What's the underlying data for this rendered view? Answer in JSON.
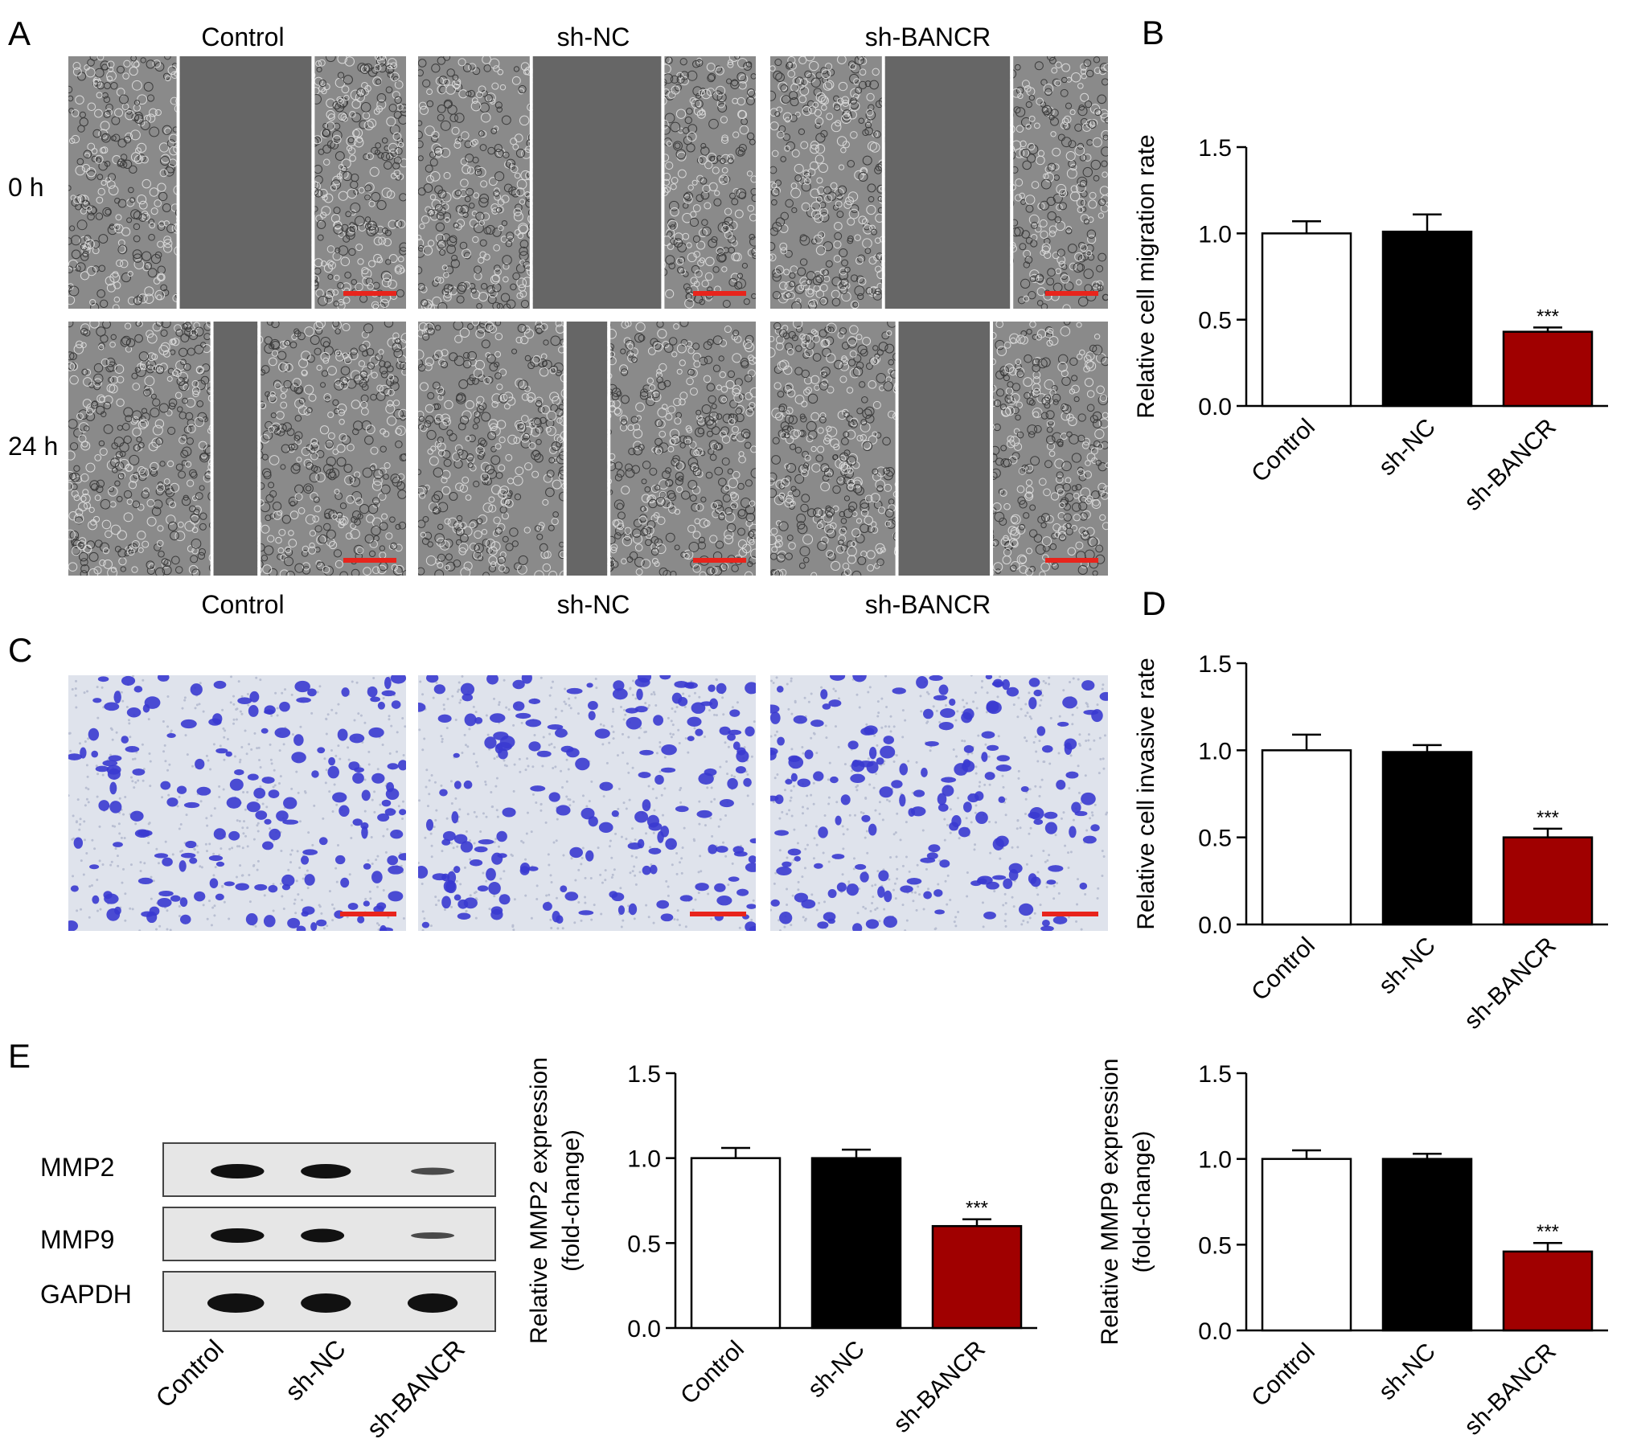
{
  "colors": {
    "control_fill": "#ffffff",
    "shnc_fill": "#000000",
    "shbancr_fill": "#a00000",
    "scale_bar": "#e8241c",
    "stain": "#3a3ad0",
    "phase_bg": "#6e6e6e"
  },
  "panelA": {
    "letter": "A",
    "columns": [
      "Control",
      "sh-NC",
      "sh-BANCR"
    ],
    "rows": [
      "0 h",
      "24 h"
    ]
  },
  "panelC": {
    "letter": "C",
    "columns": [
      "Control",
      "sh-NC",
      "sh-BANCR"
    ]
  },
  "panelE": {
    "letter": "E",
    "blot_rows": [
      "MMP2",
      "MMP9",
      "GAPDH"
    ],
    "lanes": [
      "Control",
      "sh-NC",
      "sh-BANCR"
    ]
  },
  "chart_data": [
    {
      "id": "B",
      "letter": "B",
      "type": "bar",
      "categories": [
        "Control",
        "sh-NC",
        "sh-BANCR"
      ],
      "values": [
        1.0,
        1.01,
        0.43
      ],
      "errors": [
        0.07,
        0.1,
        0.025
      ],
      "annotations": [
        "",
        "",
        "***"
      ],
      "ylabel_lines": [
        "Relative cell migration rate"
      ],
      "ylim": [
        0,
        1.5
      ],
      "yticks": [
        "0.0",
        "0.5",
        "1.0",
        "1.5"
      ]
    },
    {
      "id": "D",
      "letter": "D",
      "type": "bar",
      "categories": [
        "Control",
        "sh-NC",
        "sh-BANCR"
      ],
      "values": [
        1.0,
        0.99,
        0.5
      ],
      "errors": [
        0.09,
        0.04,
        0.05
      ],
      "annotations": [
        "",
        "",
        "***"
      ],
      "ylabel_lines": [
        "Relative cell invasive rate"
      ],
      "ylim": [
        0,
        1.5
      ],
      "yticks": [
        "0.0",
        "0.5",
        "1.0",
        "1.5"
      ]
    },
    {
      "id": "E1",
      "letter": "",
      "type": "bar",
      "categories": [
        "Control",
        "sh-NC",
        "sh-BANCR"
      ],
      "values": [
        1.0,
        1.0,
        0.6
      ],
      "errors": [
        0.06,
        0.05,
        0.04
      ],
      "annotations": [
        "",
        "",
        "***"
      ],
      "ylabel_lines": [
        "Relative MMP2 expression",
        "(fold-change)"
      ],
      "ylim": [
        0,
        1.5
      ],
      "yticks": [
        "0.0",
        "0.5",
        "1.0",
        "1.5"
      ]
    },
    {
      "id": "E2",
      "letter": "",
      "type": "bar",
      "categories": [
        "Control",
        "sh-NC",
        "sh-BANCR"
      ],
      "values": [
        1.0,
        1.0,
        0.46
      ],
      "errors": [
        0.05,
        0.03,
        0.05
      ],
      "annotations": [
        "",
        "",
        "***"
      ],
      "ylabel_lines": [
        "Relative MMP9 expression",
        "(fold-change)"
      ],
      "ylim": [
        0,
        1.5
      ],
      "yticks": [
        "0.0",
        "0.5",
        "1.0",
        "1.5"
      ]
    }
  ]
}
